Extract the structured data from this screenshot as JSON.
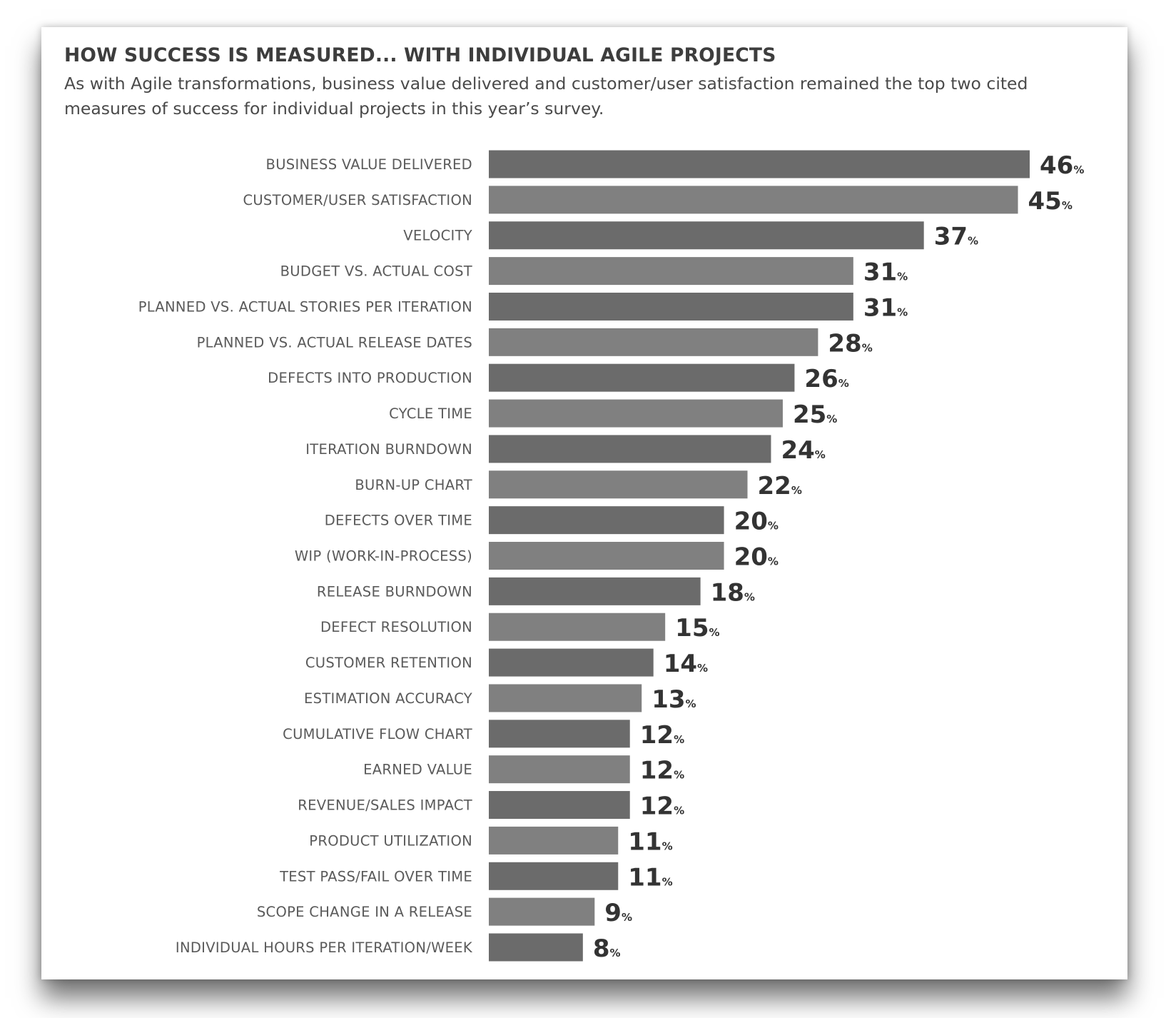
{
  "chart_data": {
    "type": "bar",
    "orientation": "horizontal",
    "title": "HOW SUCCESS IS MEASURED... WITH INDIVIDUAL AGILE PROJECTS",
    "subtitle": "As with Agile transformations, business value delivered and customer/user satisfaction remained the top two cited measures of success for individual projects in this year’s survey.",
    "unit": "%",
    "categories": [
      "BUSINESS VALUE DELIVERED",
      "CUSTOMER/USER SATISFACTION",
      "VELOCITY",
      "BUDGET VS. ACTUAL COST",
      "PLANNED VS. ACTUAL STORIES PER ITERATION",
      "PLANNED VS. ACTUAL RELEASE DATES",
      "DEFECTS INTO PRODUCTION",
      "CYCLE TIME",
      "ITERATION BURNDOWN",
      "BURN-UP CHART",
      "DEFECTS OVER TIME",
      "WIP (WORK-IN-PROCESS)",
      "RELEASE BURNDOWN",
      "DEFECT RESOLUTION",
      "CUSTOMER RETENTION",
      "ESTIMATION ACCURACY",
      "CUMULATIVE FLOW CHART",
      "EARNED VALUE",
      "REVENUE/SALES IMPACT",
      "PRODUCT UTILIZATION",
      "TEST PASS/FAIL OVER TIME",
      "SCOPE CHANGE IN A RELEASE",
      "INDIVIDUAL HOURS PER ITERATION/WEEK"
    ],
    "values": [
      46,
      45,
      37,
      31,
      31,
      28,
      26,
      25,
      24,
      22,
      20,
      20,
      18,
      15,
      14,
      13,
      12,
      12,
      12,
      11,
      11,
      9,
      8
    ],
    "xlim": [
      0,
      46
    ],
    "grid": false,
    "legend": "none",
    "colors": {
      "bar_dark": "#6b6b6b",
      "bar_light": "#808080"
    }
  }
}
